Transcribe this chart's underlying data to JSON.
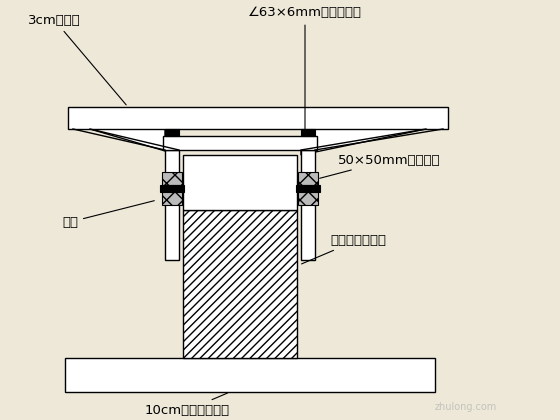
{
  "bg_color": "#ede8d8",
  "line_color": "#000000",
  "labels": {
    "top_left": "3cm厚木板",
    "top_right": "∠63×6mm的角钢卡口",
    "right_mid": "50×50mm调整木塞",
    "left_mid": "撑杆",
    "right_low": "第一次预制板桩",
    "bottom": "10cm厚混凝土台座"
  },
  "figsize": [
    5.6,
    4.2
  ],
  "dpi": 100
}
